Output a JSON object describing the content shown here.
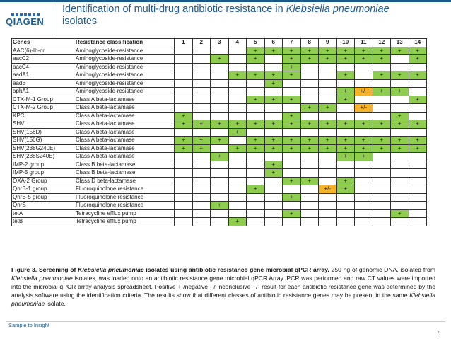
{
  "header": {
    "logo": "QIAGEN",
    "title_line1_plain": "Identification of multi-drug antibiotic resistance in ",
    "title_line1_italic": "Klebsiella pneumoniae",
    "title_line2": "isolates"
  },
  "table": {
    "col_gene": "Genes",
    "col_class": "Resistance classification",
    "isolates": [
      "1",
      "2",
      "3",
      "4",
      "5",
      "6",
      "7",
      "8",
      "9",
      "10",
      "11",
      "12",
      "13",
      "14"
    ],
    "rows": [
      {
        "gene": "AAC(6)-Ib-cr",
        "cls": "Aminoglycoside-resistance",
        "v": [
          "",
          "",
          "",
          "",
          "+",
          "+",
          "+",
          "+",
          "+",
          "+",
          "+",
          "+",
          "+",
          "+"
        ]
      },
      {
        "gene": "aacC2",
        "cls": "Aminoglycoside-resistance",
        "v": [
          "",
          "",
          "+",
          "",
          "+",
          "",
          "+",
          "+",
          "+",
          "+",
          "+",
          "+",
          "",
          "+"
        ]
      },
      {
        "gene": "aacC4",
        "cls": "Aminoglycoside-resistance",
        "v": [
          "",
          "",
          "",
          "",
          "",
          "",
          "+",
          "",
          "",
          "",
          "",
          "",
          "",
          ""
        ]
      },
      {
        "gene": "aadA1",
        "cls": "Aminoglycoside-resistance",
        "v": [
          "",
          "",
          "",
          "+",
          "+",
          "+",
          "+",
          "",
          "",
          "+",
          "",
          "+",
          "+",
          "+"
        ]
      },
      {
        "gene": "aadB",
        "cls": "Aminoglycoside-resistance",
        "v": [
          "",
          "",
          "",
          "",
          "",
          "+",
          "",
          "",
          "",
          "",
          "",
          "",
          "",
          ""
        ]
      },
      {
        "gene": "aphA1",
        "cls": "Aminoglycoside-resistance",
        "v": [
          "",
          "",
          "",
          "",
          "",
          "",
          "",
          "",
          "",
          "+",
          "+/-",
          "+",
          "+",
          ""
        ]
      },
      {
        "gene": "CTX-M-1 Group",
        "cls": "Class A beta-lactamase",
        "v": [
          "",
          "",
          "",
          "",
          "+",
          "+",
          "+",
          "",
          "",
          "+",
          "",
          "",
          "",
          "+"
        ]
      },
      {
        "gene": "CTX-M-2 Group",
        "cls": "Class A beta-lactamase",
        "v": [
          "",
          "",
          "",
          "",
          "",
          "",
          "",
          "+",
          "+",
          "",
          "+/-",
          "",
          "",
          ""
        ]
      },
      {
        "gene": "KPC",
        "cls": "Class A beta-lactamase",
        "v": [
          "+",
          "",
          "",
          "",
          "",
          "",
          "+",
          "",
          "",
          "",
          "",
          "",
          "+",
          ""
        ]
      },
      {
        "gene": "SHV",
        "cls": "Class A beta-lactamase",
        "v": [
          "+",
          "+",
          "+",
          "+",
          "+",
          "+",
          "+",
          "+",
          "+",
          "+",
          "+",
          "+",
          "+",
          "+"
        ]
      },
      {
        "gene": "SHV(156D)",
        "cls": "Class A beta-lactamase",
        "v": [
          "",
          "",
          "",
          "+",
          "",
          "",
          "",
          "",
          "",
          "",
          "",
          "",
          "",
          ""
        ]
      },
      {
        "gene": "SHV(156G)",
        "cls": "Class A beta-lactamase",
        "v": [
          "+",
          "+",
          "+",
          "",
          "+",
          "+",
          "+",
          "+",
          "+",
          "+",
          "+",
          "+",
          "+",
          "+"
        ]
      },
      {
        "gene": "SHV(238G240E)",
        "cls": "Class A beta-lactamase",
        "v": [
          "+",
          "+",
          "",
          "+",
          "+",
          "+",
          "+",
          "+",
          "+",
          "+",
          "+",
          "+",
          "+",
          "+"
        ]
      },
      {
        "gene": "SHV(238S240E)",
        "cls": "Class A beta-lactamase",
        "v": [
          "",
          "",
          "+",
          "",
          "",
          "",
          "",
          "",
          "",
          "+",
          "+",
          "",
          "",
          ""
        ]
      },
      {
        "gene": "IMP-2 group",
        "cls": "Class B beta-lactamase",
        "v": [
          "",
          "",
          "",
          "",
          "",
          "+",
          "",
          "",
          "",
          "",
          "",
          "",
          "",
          ""
        ]
      },
      {
        "gene": "IMP-5 group",
        "cls": "Class B beta-lactamase",
        "v": [
          "",
          "",
          "",
          "",
          "",
          "+",
          "",
          "",
          "",
          "",
          "",
          "",
          "",
          ""
        ]
      },
      {
        "gene": "OXA-2 Group",
        "cls": "Class D beta-lactamase",
        "v": [
          "",
          "",
          "",
          "",
          "",
          "",
          "+",
          "+",
          "",
          "+",
          "",
          "",
          "",
          ""
        ]
      },
      {
        "gene": "QnrB-1 group",
        "cls": "Fluoroquinolone resistance",
        "v": [
          "",
          "",
          "",
          "",
          "+",
          "",
          "",
          "",
          "+/-",
          "+",
          "",
          "",
          "",
          ""
        ]
      },
      {
        "gene": "QnrB-5 group",
        "cls": "Fluoroquinolone resistance",
        "v": [
          "",
          "",
          "",
          "",
          "",
          "",
          "+",
          "",
          "",
          "",
          "",
          "",
          "",
          ""
        ]
      },
      {
        "gene": "QnrS",
        "cls": "Fluoroquinolone resistance",
        "v": [
          "",
          "",
          "+",
          "",
          "",
          "",
          "",
          "",
          "",
          "",
          "",
          "",
          "",
          ""
        ]
      },
      {
        "gene": "tetA",
        "cls": "Tetracycline efflux pump",
        "v": [
          "",
          "",
          "",
          "",
          "",
          "",
          "+",
          "",
          "",
          "",
          "",
          "",
          "+",
          ""
        ]
      },
      {
        "gene": "tetB",
        "cls": "Tetracycline efflux pump",
        "v": [
          "",
          "",
          "",
          "+",
          "",
          "",
          "",
          "",
          "",
          "",
          "",
          "",
          "",
          ""
        ]
      }
    ]
  },
  "caption": {
    "lead": "Figure 3. Screening of ",
    "lead_italic": "Klebsiella pneumoniae",
    "lead_end": " isolates using antibiotic resistance gene microbial qPCR array.",
    "body1": " 250 ng of genomic DNA, isolated from ",
    "body1_italic": "Klebsiella pneumoniae",
    "body2": " isolates, was loaded onto an antibiotic resistance gene microbial qPCR Array. PCR was performed and raw CT values were imported into the microbial qPCR array analysis spreadsheet. Positive + /negative - / inconclusive +/- result for each antibiotic resistance gene was determined by the analysis software using the identification criteria. The results show that different classes of antibiotic resistance genes may be present in the same ",
    "body2_italic": "Klebsiella pneumoniae",
    "body3": " isolate."
  },
  "footer": {
    "text": "Sample to Insight",
    "page": "7"
  },
  "colors": {
    "positive": "#8fcd4f",
    "inconclusive": "#f5b32a",
    "brand": "#1f5c99"
  }
}
